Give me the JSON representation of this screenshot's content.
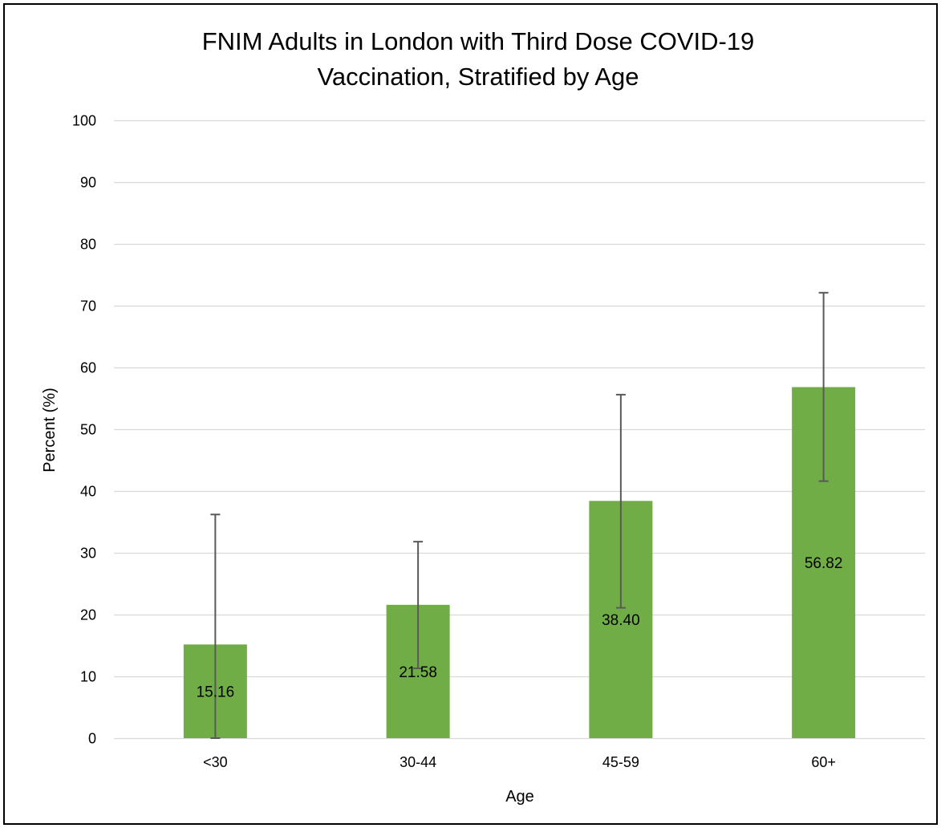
{
  "chart_data": {
    "type": "bar",
    "title_lines": [
      "FNIM Adults in London with Third Dose COVID-19",
      "Vaccination, Stratified by Age"
    ],
    "xlabel": "Age",
    "ylabel": "Percent (%)",
    "categories": [
      "<30",
      "30-44",
      "45-59",
      "60+"
    ],
    "values": [
      15.16,
      21.58,
      38.4,
      56.82
    ],
    "data_labels": [
      "15.16",
      "21.58",
      "38.40",
      "56.82"
    ],
    "error_bars": [
      {
        "low": 0,
        "high": 36.2
      },
      {
        "low": 11.3,
        "high": 31.8
      },
      {
        "low": 21.1,
        "high": 55.6
      },
      {
        "low": 41.6,
        "high": 72.1
      }
    ],
    "ylim": [
      0,
      100
    ],
    "yticks": [
      0,
      10,
      20,
      30,
      40,
      50,
      60,
      70,
      80,
      90,
      100
    ],
    "grid": true,
    "legend": "none",
    "colors": {
      "bar": "#70ad47",
      "grid": "#d9d9d9",
      "error_bar": "#595959",
      "frame": "#000000"
    }
  }
}
